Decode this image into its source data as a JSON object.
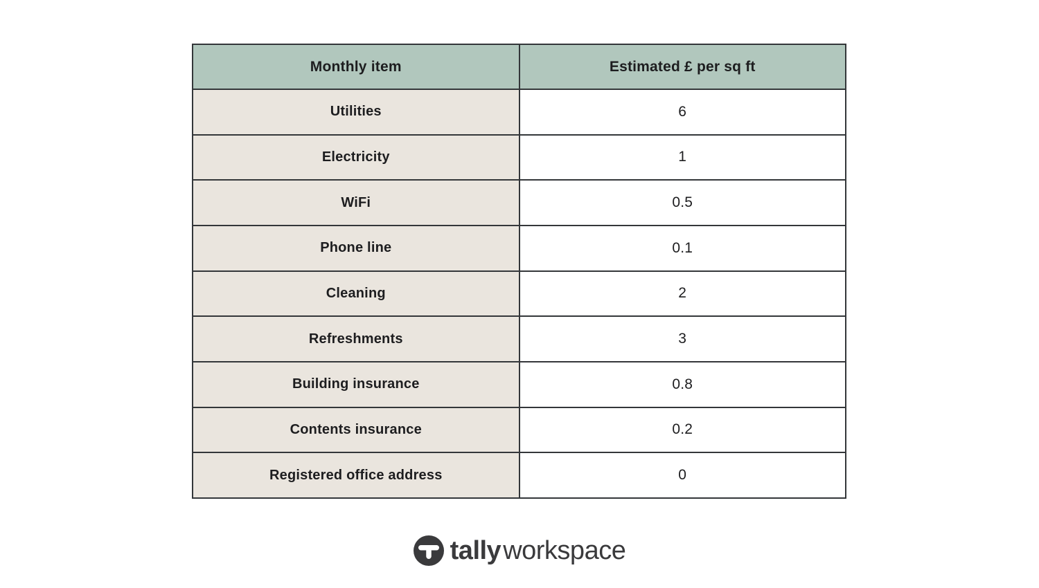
{
  "table": {
    "columns": [
      "Monthly item",
      "Estimated £ per sq ft"
    ],
    "rows": [
      {
        "item": "Utilities",
        "value": "6"
      },
      {
        "item": "Electricity",
        "value": "1"
      },
      {
        "item": "WiFi",
        "value": "0.5"
      },
      {
        "item": "Phone line",
        "value": "0.1"
      },
      {
        "item": "Cleaning",
        "value": "2"
      },
      {
        "item": "Refreshments",
        "value": "3"
      },
      {
        "item": "Building insurance",
        "value": "0.8"
      },
      {
        "item": "Contents insurance",
        "value": "0.2"
      },
      {
        "item": "Registered office address",
        "value": "0"
      }
    ]
  },
  "chart_data": {
    "type": "table",
    "title": "",
    "columns": [
      "Monthly item",
      "Estimated £ per sq ft"
    ],
    "rows": [
      [
        "Utilities",
        6
      ],
      [
        "Electricity",
        1
      ],
      [
        "WiFi",
        0.5
      ],
      [
        "Phone line",
        0.1
      ],
      [
        "Cleaning",
        2
      ],
      [
        "Refreshments",
        3
      ],
      [
        "Building insurance",
        0.8
      ],
      [
        "Contents insurance",
        0.2
      ],
      [
        "Registered office address",
        0
      ]
    ]
  },
  "logo": {
    "brand_bold": "tally",
    "brand_light": "workspace",
    "icon": "tally-circle-t-icon"
  },
  "colors": {
    "header_bg": "#b1c7bd",
    "item_bg": "#eae5de",
    "value_bg": "#ffffff",
    "border": "#333639",
    "text": "#1d1d1f",
    "logo": "#3a3a3c"
  }
}
